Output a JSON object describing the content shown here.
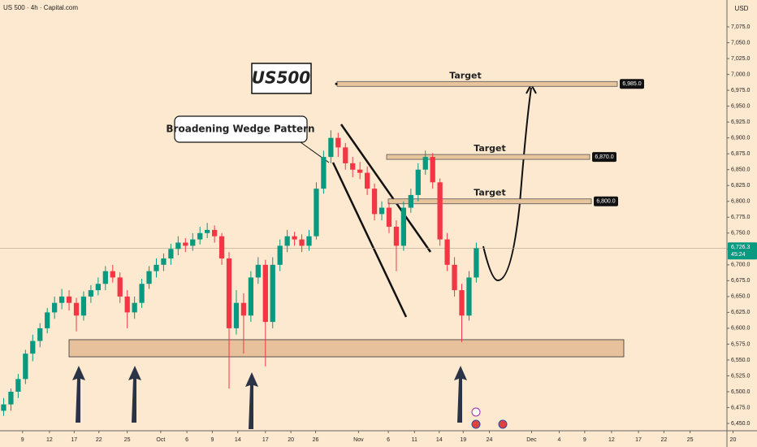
{
  "chart_data": {
    "type": "candlestick",
    "header": "US 500 · 4h · Capital.com",
    "currency": "USD",
    "title": "US500",
    "pattern_label": "Broadening Wedge Pattern",
    "up_color": "#089981",
    "down_color": "#f23645",
    "candles": [
      [
        6470,
        6490,
        6462,
        6480
      ],
      [
        6480,
        6505,
        6470,
        6500
      ],
      [
        6500,
        6528,
        6490,
        6520
      ],
      [
        6520,
        6566,
        6512,
        6560
      ],
      [
        6560,
        6590,
        6548,
        6580
      ],
      [
        6580,
        6608,
        6570,
        6600
      ],
      [
        6600,
        6632,
        6592,
        6625
      ],
      [
        6625,
        6650,
        6615,
        6640
      ],
      [
        6640,
        6662,
        6630,
        6650
      ],
      [
        6650,
        6660,
        6628,
        6640
      ],
      [
        6640,
        6648,
        6595,
        6620
      ],
      [
        6620,
        6658,
        6612,
        6650
      ],
      [
        6650,
        6668,
        6640,
        6660
      ],
      [
        6660,
        6680,
        6652,
        6670
      ],
      [
        6670,
        6698,
        6660,
        6690
      ],
      [
        6690,
        6700,
        6672,
        6680
      ],
      [
        6680,
        6688,
        6640,
        6650
      ],
      [
        6650,
        6660,
        6600,
        6625
      ],
      [
        6625,
        6650,
        6615,
        6640
      ],
      [
        6640,
        6678,
        6632,
        6670
      ],
      [
        6670,
        6698,
        6662,
        6690
      ],
      [
        6690,
        6710,
        6680,
        6700
      ],
      [
        6700,
        6718,
        6690,
        6710
      ],
      [
        6710,
        6733,
        6700,
        6725
      ],
      [
        6725,
        6745,
        6715,
        6735
      ],
      [
        6735,
        6742,
        6720,
        6730
      ],
      [
        6730,
        6750,
        6722,
        6740
      ],
      [
        6740,
        6760,
        6732,
        6750
      ],
      [
        6750,
        6766,
        6742,
        6755
      ],
      [
        6755,
        6762,
        6735,
        6745
      ],
      [
        6745,
        6750,
        6700,
        6710
      ],
      [
        6710,
        6720,
        6505,
        6600
      ],
      [
        6600,
        6660,
        6590,
        6640
      ],
      [
        6640,
        6655,
        6560,
        6620
      ],
      [
        6620,
        6690,
        6610,
        6680
      ],
      [
        6680,
        6712,
        6670,
        6700
      ],
      [
        6700,
        6708,
        6540,
        6610
      ],
      [
        6610,
        6712,
        6600,
        6700
      ],
      [
        6700,
        6740,
        6690,
        6730
      ],
      [
        6730,
        6755,
        6720,
        6745
      ],
      [
        6745,
        6752,
        6730,
        6740
      ],
      [
        6740,
        6748,
        6720,
        6730
      ],
      [
        6730,
        6755,
        6722,
        6745
      ],
      [
        6745,
        6830,
        6740,
        6820
      ],
      [
        6820,
        6880,
        6812,
        6870
      ],
      [
        6870,
        6912,
        6860,
        6900
      ],
      [
        6900,
        6908,
        6870,
        6885
      ],
      [
        6885,
        6892,
        6850,
        6860
      ],
      [
        6860,
        6870,
        6838,
        6850
      ],
      [
        6850,
        6862,
        6835,
        6845
      ],
      [
        6845,
        6855,
        6810,
        6820
      ],
      [
        6820,
        6828,
        6770,
        6780
      ],
      [
        6780,
        6800,
        6770,
        6790
      ],
      [
        6790,
        6798,
        6750,
        6760
      ],
      [
        6760,
        6770,
        6690,
        6730
      ],
      [
        6730,
        6800,
        6722,
        6790
      ],
      [
        6790,
        6820,
        6782,
        6810
      ],
      [
        6810,
        6860,
        6800,
        6850
      ],
      [
        6850,
        6880,
        6842,
        6870
      ],
      [
        6870,
        6876,
        6820,
        6830
      ],
      [
        6830,
        6836,
        6730,
        6740
      ],
      [
        6740,
        6750,
        6690,
        6700
      ],
      [
        6700,
        6712,
        6650,
        6660
      ],
      [
        6660,
        6670,
        6578,
        6620
      ],
      [
        6620,
        6690,
        6612,
        6680
      ],
      [
        6680,
        6735,
        6672,
        6726
      ]
    ],
    "targets": [
      {
        "label": "Target",
        "price": {
          "value": 6985,
          "label": "6,985.0"
        }
      },
      {
        "label": "Target",
        "price": {
          "value": 6870,
          "label": "6,870.0"
        }
      },
      {
        "label": "Target",
        "price": {
          "value": 6800,
          "label": "6,800.0"
        }
      }
    ],
    "support_zone": {
      "low": 6555,
      "high": 6582
    },
    "last_price": {
      "value": 6726.3,
      "label": "6,726.3"
    },
    "countdown": "45:24",
    "ylim": [
      6438.5,
      7117.3
    ],
    "yticks": [
      {
        "value": 6450,
        "label": "6,450.0"
      },
      {
        "value": 6475,
        "label": "6,475.0"
      },
      {
        "value": 6500,
        "label": "6,500.0"
      },
      {
        "value": 6525,
        "label": "6,525.0"
      },
      {
        "value": 6550,
        "label": "6,550.0"
      },
      {
        "value": 6575,
        "label": "6,575.0"
      },
      {
        "value": 6600,
        "label": "6,600.0"
      },
      {
        "value": 6625,
        "label": "6,625.0"
      },
      {
        "value": 6650,
        "label": "6,650.0"
      },
      {
        "value": 6675,
        "label": "6,675.0"
      },
      {
        "value": 6700,
        "label": "6,700.0"
      },
      {
        "value": 6725,
        "label": "6,725.0"
      },
      {
        "value": 6750,
        "label": "6,750.0"
      },
      {
        "value": 6775,
        "label": "6,775.0"
      },
      {
        "value": 6800,
        "label": "6,800.0"
      },
      {
        "value": 6825,
        "label": "6,825.0"
      },
      {
        "value": 6850,
        "label": "6,850.0"
      },
      {
        "value": 6875,
        "label": "6,875.0"
      },
      {
        "value": 6900,
        "label": "6,900.0"
      },
      {
        "value": 6925,
        "label": "6,925.0"
      },
      {
        "value": 6950,
        "label": "6,950.0"
      },
      {
        "value": 6975,
        "label": "6,975.0"
      },
      {
        "value": 7000,
        "label": "7,000.0"
      },
      {
        "value": 7025,
        "label": "7,025.0"
      },
      {
        "value": 7050,
        "label": "7,050.0"
      },
      {
        "value": 7075,
        "label": "7,075.0"
      }
    ],
    "xlim": [
      0,
      104.1
    ],
    "xticks": [
      {
        "value": 3.1,
        "label": "9"
      },
      {
        "value": 6.8,
        "label": "12"
      },
      {
        "value": 10.2,
        "label": "17"
      },
      {
        "value": 13.6,
        "label": "22"
      },
      {
        "value": 17.5,
        "label": "25"
      },
      {
        "value": 22.1,
        "label": "Oct"
      },
      {
        "value": 25.7,
        "label": "6"
      },
      {
        "value": 29.2,
        "label": "9"
      },
      {
        "value": 32.7,
        "label": "14"
      },
      {
        "value": 36.5,
        "label": "17"
      },
      {
        "value": 40,
        "label": "20"
      },
      {
        "value": 43.4,
        "label": "26"
      },
      {
        "value": 49.3,
        "label": "Nov"
      },
      {
        "value": 53.4,
        "label": "6"
      },
      {
        "value": 57,
        "label": "11"
      },
      {
        "value": 60.4,
        "label": "14"
      },
      {
        "value": 63.7,
        "label": "19"
      },
      {
        "value": 67.3,
        "label": "24"
      },
      {
        "value": 73.1,
        "label": "Dec"
      },
      {
        "value": 76.9,
        "label": "4"
      },
      {
        "value": 80.4,
        "label": "9"
      },
      {
        "value": 84.1,
        "label": "12"
      },
      {
        "value": 87.8,
        "label": "17"
      },
      {
        "value": 91.3,
        "label": "22"
      },
      {
        "value": 94.9,
        "label": "25"
      },
      {
        "value": 100.8,
        "label": "20"
      }
    ]
  }
}
